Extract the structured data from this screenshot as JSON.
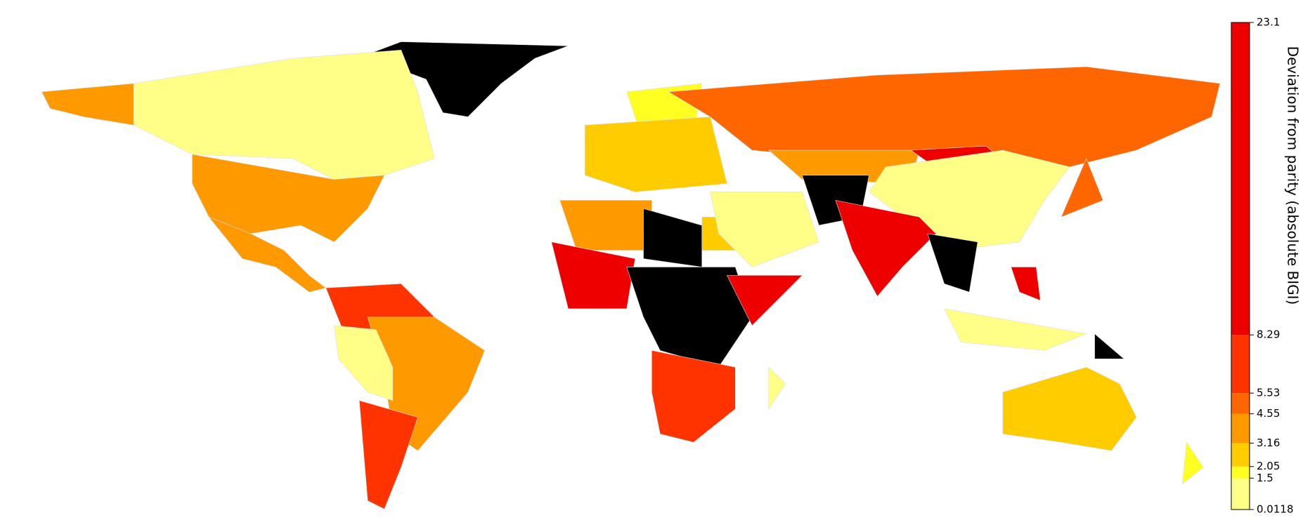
{
  "map": {
    "type": "choropleth",
    "colorbar": {
      "label": "Deviation from parity (absolute BIGI)",
      "lim": [
        0.0118,
        23.1
      ],
      "ticks": [
        0.0118,
        1.5,
        2.05,
        3.16,
        4.55,
        5.53,
        8.29,
        23.1
      ],
      "colors": [
        "#ffff88",
        "#ffff22",
        "#ffcc00",
        "#ff9900",
        "#ff6600",
        "#ff3300",
        "#ee0000"
      ]
    }
  }
}
